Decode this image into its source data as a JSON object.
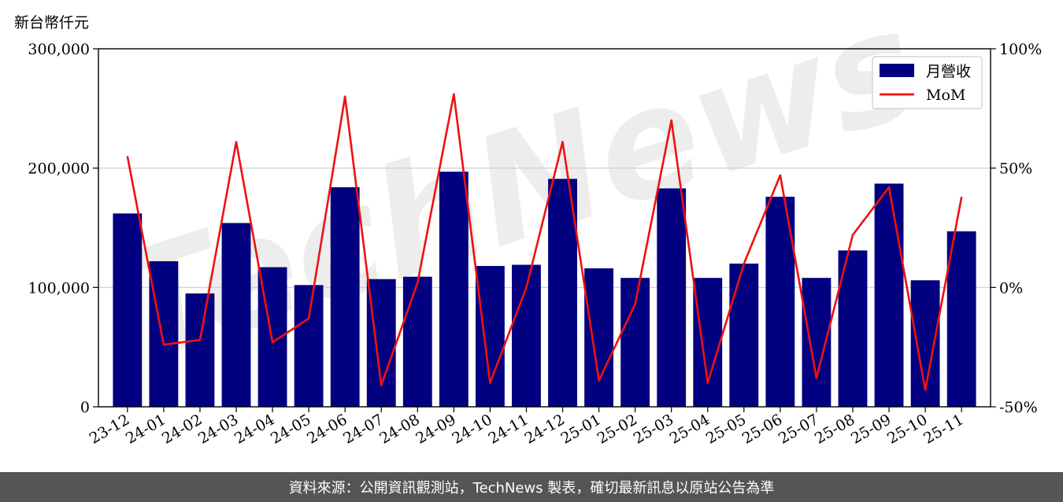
{
  "unit_label": "新台幣仟元",
  "footer": "資料來源：公開資訊觀測站，TechNews 製表，確切最新訊息以原站公告為準",
  "watermark": "TechNews",
  "colors": {
    "bar": "#000080",
    "line": "#ee1111",
    "grid": "#cccccc",
    "footer_bg": "#555555"
  },
  "chart_data": {
    "type": "bar",
    "categories": [
      "23-12",
      "24-01",
      "24-02",
      "24-03",
      "24-04",
      "24-05",
      "24-06",
      "24-07",
      "24-08",
      "24-09",
      "24-10",
      "24-11",
      "24-12",
      "25-01",
      "25-02",
      "25-03",
      "25-04",
      "25-05",
      "25-06",
      "25-07",
      "25-08",
      "25-09",
      "25-10",
      "25-11"
    ],
    "series": [
      {
        "name": "月營收",
        "type": "bar",
        "axis": "left",
        "values": [
          162000,
          122000,
          95000,
          154000,
          117000,
          102000,
          184000,
          107000,
          109000,
          197000,
          118000,
          119000,
          191000,
          116000,
          108000,
          183000,
          108000,
          120000,
          176000,
          108000,
          131000,
          187000,
          106000,
          147000
        ]
      },
      {
        "name": "MoM",
        "type": "line",
        "axis": "right",
        "values": [
          55,
          -24,
          -22,
          61,
          -23,
          -13,
          80,
          -41,
          2,
          81,
          -40,
          0,
          61,
          -39,
          -7,
          70,
          -40,
          10,
          47,
          -38,
          22,
          42,
          -43,
          38
        ]
      }
    ],
    "y_left": {
      "min": 0,
      "max": 300000,
      "ticks": [
        0,
        100000,
        200000,
        300000
      ],
      "tick_labels": [
        "0",
        "100,000",
        "200,000",
        "300,000"
      ]
    },
    "y_right": {
      "min": -50,
      "max": 100,
      "ticks": [
        -50,
        0,
        50,
        100
      ],
      "tick_labels": [
        "-50%",
        "0%",
        "50%",
        "100%"
      ]
    },
    "grid": "horizontal",
    "legend_position": "top-right"
  }
}
